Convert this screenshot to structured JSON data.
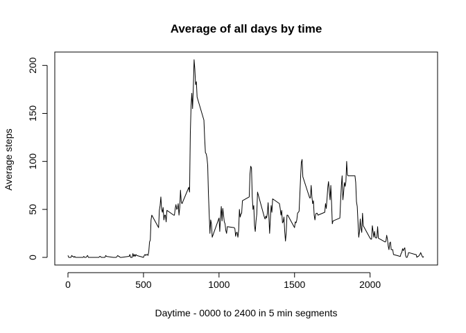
{
  "chart_data": {
    "type": "line",
    "title": "Average of all days by time",
    "xlabel": "Daytime - 0000 to 2400 in 5 min segments",
    "ylabel": "Average steps",
    "xlim": [
      0,
      2355
    ],
    "ylim": [
      0,
      206
    ],
    "x_ticks": [
      0,
      500,
      1000,
      1500,
      2000
    ],
    "y_ticks": [
      0,
      50,
      100,
      150,
      200
    ],
    "grid": false,
    "series_color": "#000000",
    "series": [
      {
        "points": [
          [
            0,
            2
          ],
          [
            5,
            0
          ],
          [
            10,
            0
          ],
          [
            15,
            0
          ],
          [
            20,
            0
          ],
          [
            25,
            2
          ],
          [
            30,
            1
          ],
          [
            35,
            1
          ],
          [
            40,
            0
          ],
          [
            45,
            1
          ],
          [
            50,
            0
          ],
          [
            55,
            0
          ],
          [
            100,
            0
          ],
          [
            105,
            1
          ],
          [
            110,
            0
          ],
          [
            115,
            0
          ],
          [
            120,
            0
          ],
          [
            125,
            1
          ],
          [
            130,
            2
          ],
          [
            135,
            0
          ],
          [
            140,
            0
          ],
          [
            145,
            0
          ],
          [
            150,
            0
          ],
          [
            155,
            0
          ],
          [
            200,
            0
          ],
          [
            205,
            0
          ],
          [
            210,
            1
          ],
          [
            215,
            1
          ],
          [
            220,
            0
          ],
          [
            225,
            0
          ],
          [
            230,
            0
          ],
          [
            235,
            0
          ],
          [
            240,
            0
          ],
          [
            245,
            0
          ],
          [
            250,
            2
          ],
          [
            255,
            1
          ],
          [
            300,
            0
          ],
          [
            305,
            0
          ],
          [
            310,
            0
          ],
          [
            315,
            0
          ],
          [
            320,
            0
          ],
          [
            325,
            1
          ],
          [
            330,
            2
          ],
          [
            335,
            1
          ],
          [
            340,
            1
          ],
          [
            345,
            0
          ],
          [
            350,
            0
          ],
          [
            355,
            0
          ],
          [
            400,
            1
          ],
          [
            405,
            1
          ],
          [
            410,
            3
          ],
          [
            415,
            0
          ],
          [
            420,
            0
          ],
          [
            425,
            0
          ],
          [
            430,
            4
          ],
          [
            435,
            1
          ],
          [
            440,
            3
          ],
          [
            445,
            1
          ],
          [
            450,
            3
          ],
          [
            455,
            2
          ],
          [
            500,
            0
          ],
          [
            505,
            2
          ],
          [
            510,
            3
          ],
          [
            515,
            2
          ],
          [
            520,
            3
          ],
          [
            525,
            3
          ],
          [
            530,
            2
          ],
          [
            535,
            6
          ],
          [
            540,
            16
          ],
          [
            545,
            18
          ],
          [
            550,
            39
          ],
          [
            555,
            44
          ],
          [
            600,
            31
          ],
          [
            605,
            49
          ],
          [
            610,
            54
          ],
          [
            615,
            63
          ],
          [
            620,
            50
          ],
          [
            625,
            47
          ],
          [
            630,
            52
          ],
          [
            635,
            39
          ],
          [
            640,
            44
          ],
          [
            645,
            44
          ],
          [
            650,
            37
          ],
          [
            655,
            49
          ],
          [
            700,
            44
          ],
          [
            705,
            44
          ],
          [
            710,
            51
          ],
          [
            715,
            55
          ],
          [
            720,
            50
          ],
          [
            725,
            51
          ],
          [
            730,
            56
          ],
          [
            735,
            44
          ],
          [
            740,
            52
          ],
          [
            745,
            70
          ],
          [
            750,
            58
          ],
          [
            755,
            56
          ],
          [
            800,
            73
          ],
          [
            805,
            68
          ],
          [
            810,
            129
          ],
          [
            815,
            158
          ],
          [
            820,
            171
          ],
          [
            825,
            155
          ],
          [
            830,
            177
          ],
          [
            835,
            206
          ],
          [
            840,
            196
          ],
          [
            845,
            180
          ],
          [
            850,
            183
          ],
          [
            855,
            167
          ],
          [
            900,
            143
          ],
          [
            905,
            124
          ],
          [
            910,
            109
          ],
          [
            915,
            108
          ],
          [
            920,
            104
          ],
          [
            925,
            96
          ],
          [
            930,
            66
          ],
          [
            935,
            45
          ],
          [
            940,
            25
          ],
          [
            945,
            39
          ],
          [
            950,
            35
          ],
          [
            955,
            21
          ],
          [
            1000,
            41
          ],
          [
            1005,
            27
          ],
          [
            1010,
            42
          ],
          [
            1015,
            53
          ],
          [
            1020,
            38
          ],
          [
            1025,
            51
          ],
          [
            1030,
            44
          ],
          [
            1035,
            37
          ],
          [
            1040,
            35
          ],
          [
            1045,
            28
          ],
          [
            1050,
            25
          ],
          [
            1055,
            32
          ],
          [
            1100,
            31
          ],
          [
            1105,
            30
          ],
          [
            1110,
            22
          ],
          [
            1115,
            26
          ],
          [
            1120,
            26
          ],
          [
            1125,
            21
          ],
          [
            1130,
            28
          ],
          [
            1135,
            50
          ],
          [
            1140,
            42
          ],
          [
            1145,
            45
          ],
          [
            1150,
            46
          ],
          [
            1155,
            59
          ],
          [
            1200,
            63
          ],
          [
            1205,
            87
          ],
          [
            1210,
            95
          ],
          [
            1215,
            93
          ],
          [
            1220,
            63
          ],
          [
            1225,
            50
          ],
          [
            1230,
            54
          ],
          [
            1235,
            33
          ],
          [
            1240,
            27
          ],
          [
            1245,
            38
          ],
          [
            1250,
            45
          ],
          [
            1255,
            68
          ],
          [
            1300,
            42
          ],
          [
            1305,
            40
          ],
          [
            1310,
            43
          ],
          [
            1315,
            41
          ],
          [
            1320,
            46
          ],
          [
            1325,
            57
          ],
          [
            1330,
            43
          ],
          [
            1335,
            25
          ],
          [
            1340,
            40
          ],
          [
            1345,
            54
          ],
          [
            1350,
            47
          ],
          [
            1355,
            61
          ],
          [
            1400,
            56
          ],
          [
            1405,
            51
          ],
          [
            1410,
            44
          ],
          [
            1415,
            49
          ],
          [
            1420,
            36
          ],
          [
            1425,
            37
          ],
          [
            1430,
            42
          ],
          [
            1435,
            27
          ],
          [
            1440,
            17
          ],
          [
            1445,
            26
          ],
          [
            1450,
            44
          ],
          [
            1455,
            44
          ],
          [
            1500,
            31
          ],
          [
            1505,
            37
          ],
          [
            1510,
            36
          ],
          [
            1515,
            39
          ],
          [
            1520,
            46
          ],
          [
            1525,
            47
          ],
          [
            1530,
            48
          ],
          [
            1535,
            65
          ],
          [
            1540,
            83
          ],
          [
            1545,
            99
          ],
          [
            1550,
            102
          ],
          [
            1555,
            84
          ],
          [
            1600,
            62
          ],
          [
            1605,
            62
          ],
          [
            1610,
            75
          ],
          [
            1615,
            63
          ],
          [
            1620,
            56
          ],
          [
            1625,
            59
          ],
          [
            1630,
            44
          ],
          [
            1635,
            39
          ],
          [
            1640,
            45
          ],
          [
            1645,
            46
          ],
          [
            1650,
            46
          ],
          [
            1655,
            44
          ],
          [
            1700,
            47
          ],
          [
            1705,
            56
          ],
          [
            1710,
            51
          ],
          [
            1715,
            61
          ],
          [
            1720,
            73
          ],
          [
            1725,
            79
          ],
          [
            1730,
            69
          ],
          [
            1735,
            60
          ],
          [
            1740,
            75
          ],
          [
            1745,
            57
          ],
          [
            1750,
            35
          ],
          [
            1755,
            38
          ],
          [
            1800,
            41
          ],
          [
            1805,
            59
          ],
          [
            1810,
            75
          ],
          [
            1815,
            85
          ],
          [
            1820,
            60
          ],
          [
            1825,
            68
          ],
          [
            1830,
            78
          ],
          [
            1835,
            74
          ],
          [
            1840,
            79
          ],
          [
            1845,
            100
          ],
          [
            1850,
            86
          ],
          [
            1855,
            85
          ],
          [
            1900,
            85
          ],
          [
            1905,
            78
          ],
          [
            1910,
            58
          ],
          [
            1915,
            53
          ],
          [
            1920,
            37
          ],
          [
            1925,
            21
          ],
          [
            1930,
            27
          ],
          [
            1935,
            40
          ],
          [
            1940,
            30
          ],
          [
            1945,
            26
          ],
          [
            1950,
            46
          ],
          [
            1955,
            33
          ],
          [
            2000,
            20
          ],
          [
            2005,
            19
          ],
          [
            2010,
            19
          ],
          [
            2015,
            33
          ],
          [
            2020,
            27
          ],
          [
            2025,
            21
          ],
          [
            2030,
            27
          ],
          [
            2035,
            21
          ],
          [
            2040,
            20
          ],
          [
            2045,
            21
          ],
          [
            2050,
            32
          ],
          [
            2055,
            20
          ],
          [
            2100,
            16
          ],
          [
            2105,
            17
          ],
          [
            2110,
            23
          ],
          [
            2115,
            19
          ],
          [
            2120,
            12
          ],
          [
            2125,
            8
          ],
          [
            2130,
            15
          ],
          [
            2135,
            16
          ],
          [
            2140,
            8
          ],
          [
            2145,
            8
          ],
          [
            2150,
            8
          ],
          [
            2155,
            3
          ],
          [
            2200,
            1
          ],
          [
            2205,
            4
          ],
          [
            2210,
            5
          ],
          [
            2215,
            9
          ],
          [
            2220,
            7
          ],
          [
            2225,
            9
          ],
          [
            2230,
            10
          ],
          [
            2235,
            2
          ],
          [
            2240,
            0
          ],
          [
            2245,
            0
          ],
          [
            2250,
            2
          ],
          [
            2255,
            5
          ],
          [
            2300,
            3
          ],
          [
            2305,
            3
          ],
          [
            2310,
            0
          ],
          [
            2315,
            1
          ],
          [
            2320,
            1
          ],
          [
            2325,
            2
          ],
          [
            2330,
            3
          ],
          [
            2335,
            5
          ],
          [
            2340,
            3
          ],
          [
            2345,
            1
          ],
          [
            2350,
            0
          ],
          [
            2355,
            1
          ]
        ]
      }
    ]
  }
}
